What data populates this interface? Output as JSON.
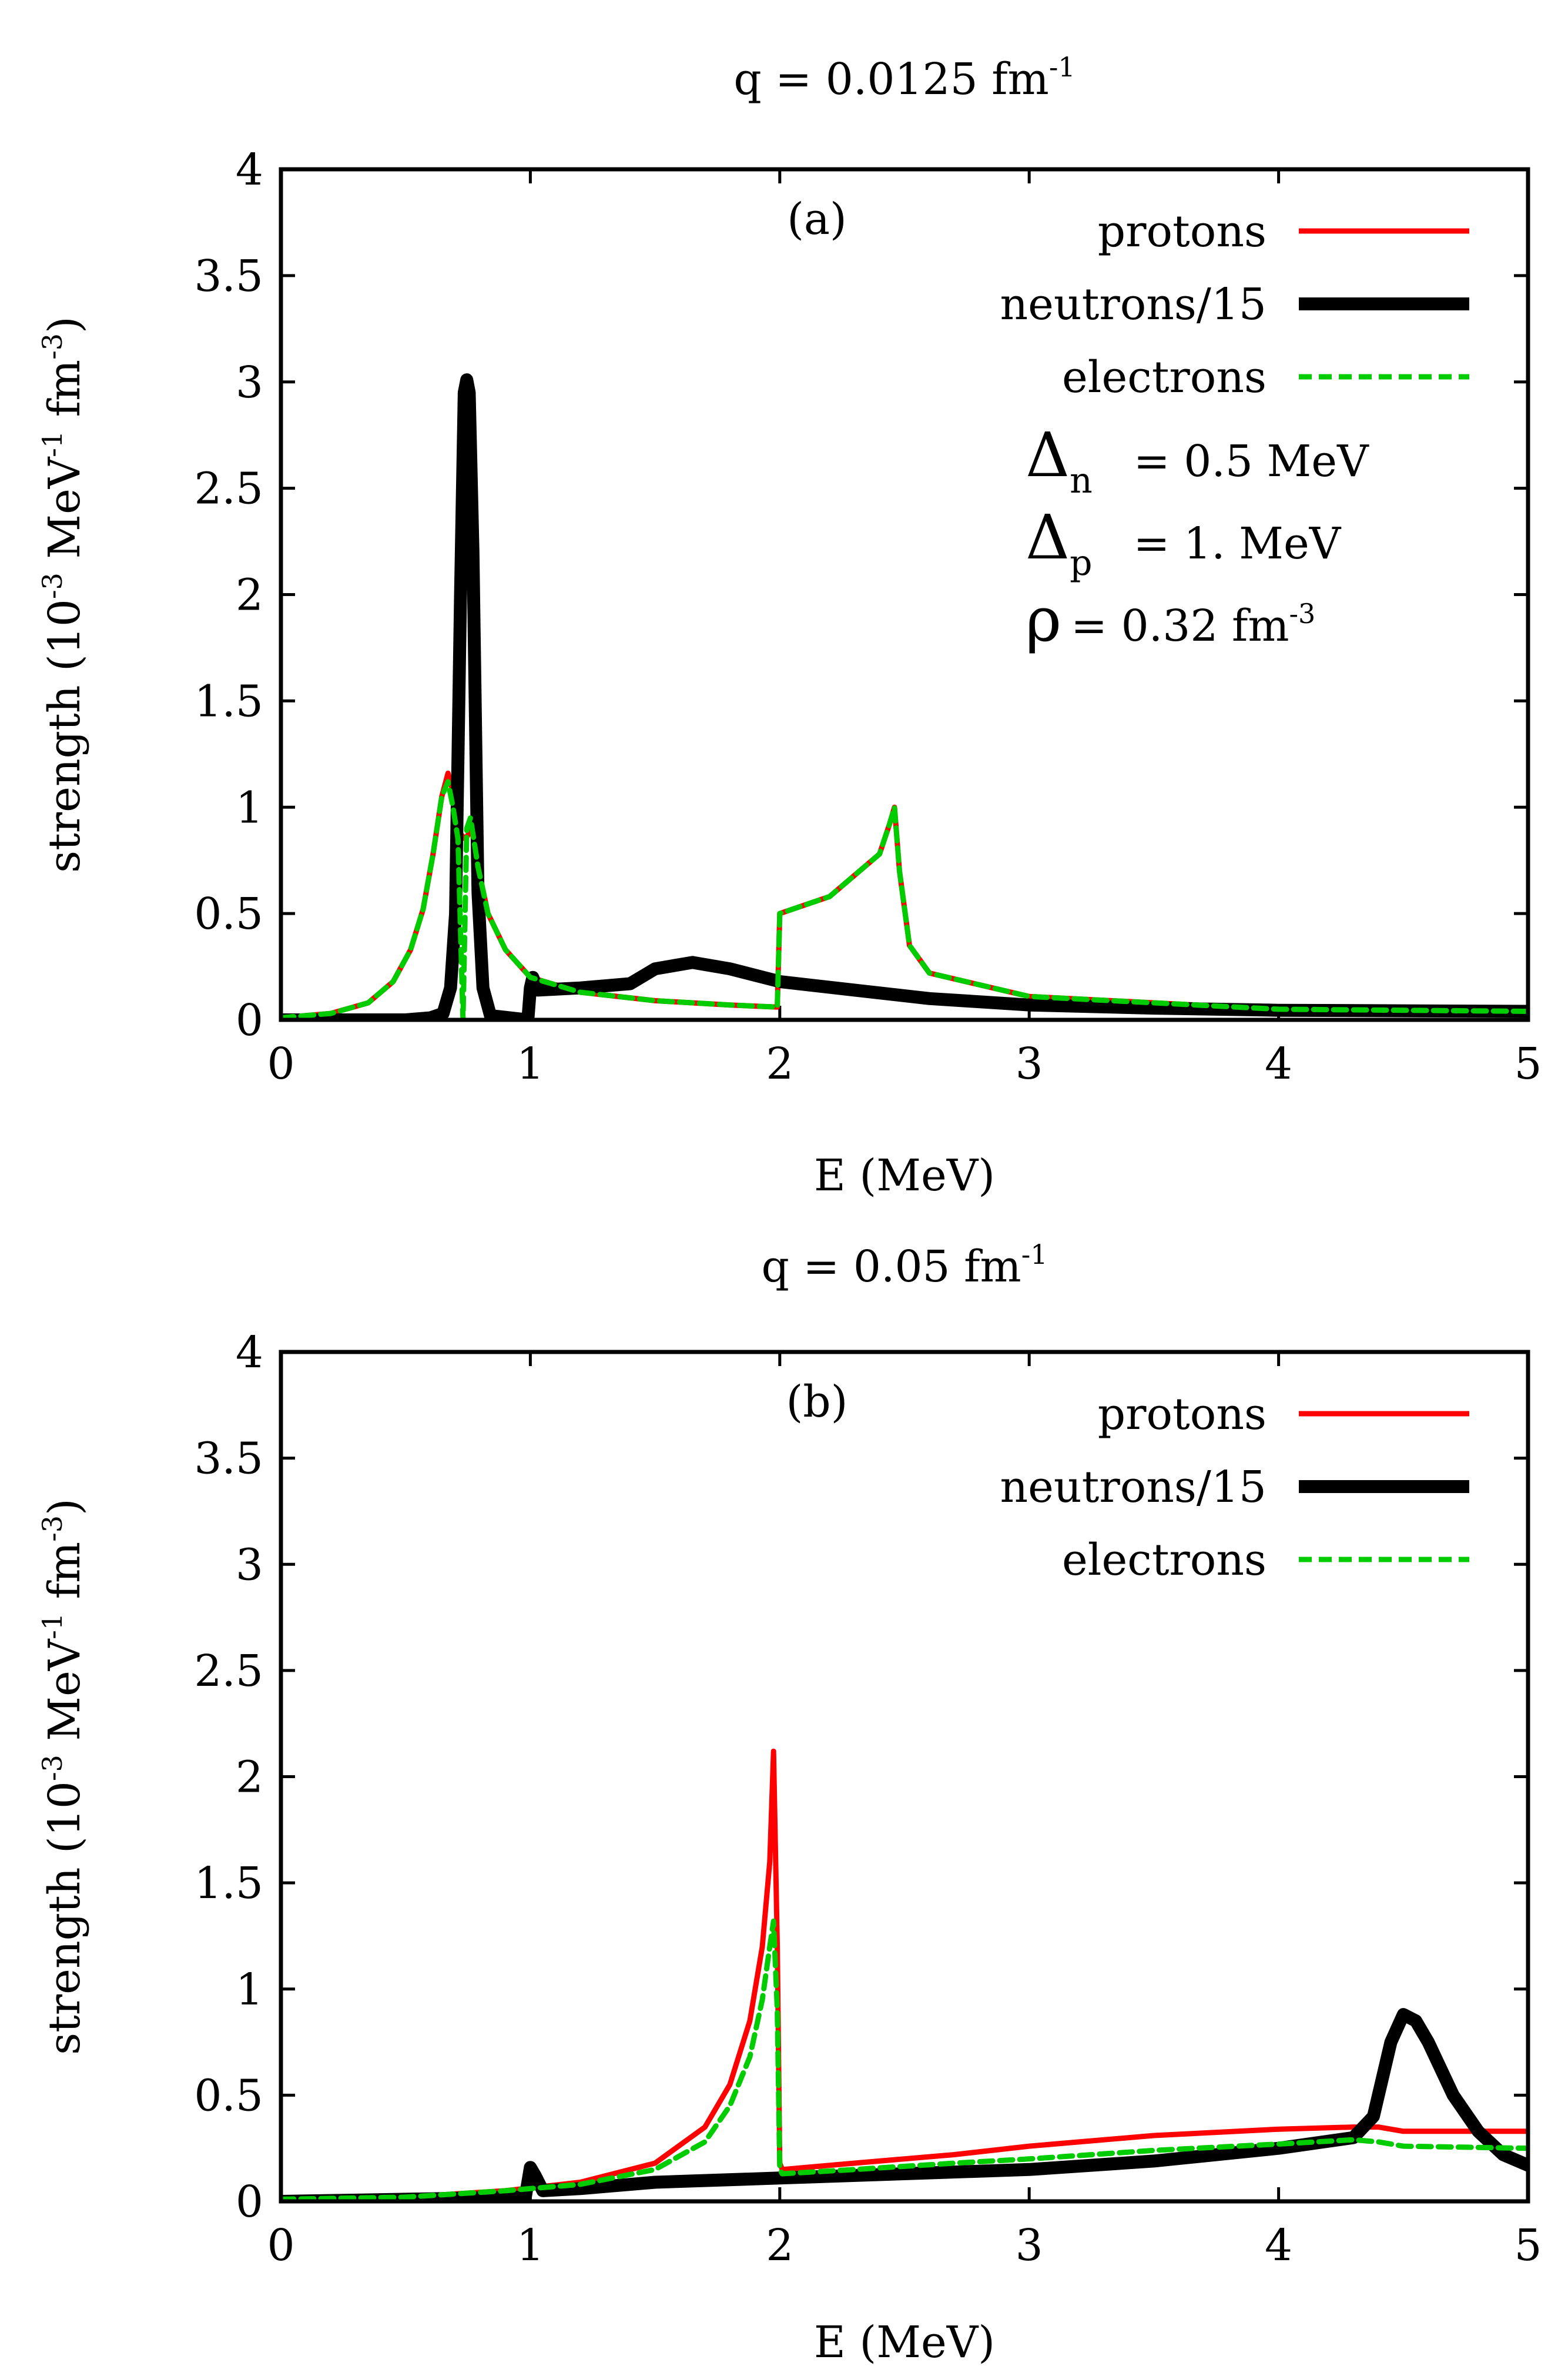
{
  "colors": {
    "protons": "#ff0000",
    "neutrons": "#000000",
    "electrons": "#00cc00",
    "frame": "#000000"
  },
  "chart_data": [
    {
      "type": "line",
      "panel_label": "(a)",
      "title": {
        "base": "q = 0.0125 fm",
        "sup": "-1"
      },
      "xlabel": "E (MeV)",
      "ylabel": {
        "p1": "strength (10",
        "s1": "-3",
        "p2": " MeV",
        "s2": "-1",
        "p3": " fm",
        "s3": "-3",
        "p4": ")"
      },
      "xlim": [
        0,
        5
      ],
      "ylim": [
        0,
        4
      ],
      "xticks": [
        "0",
        "1",
        "2",
        "3",
        "4",
        "5"
      ],
      "yticks": [
        "0",
        "0.5",
        "1",
        "1.5",
        "2",
        "2.5",
        "3",
        "3.5",
        "4"
      ],
      "legend_position": "top-right",
      "annotations": [
        {
          "sym": "Δ",
          "sub": "n",
          "text": "= 0.5 MeV"
        },
        {
          "sym": "Δ",
          "sub": "p",
          "text": "= 1. MeV"
        },
        {
          "sym": "ρ",
          "text": "= 0.32 fm",
          "sup": "-3"
        }
      ],
      "series": [
        {
          "key": "protons",
          "name": "protons",
          "points": [
            [
              0,
              0.01
            ],
            [
              0.2,
              0.03
            ],
            [
              0.35,
              0.08
            ],
            [
              0.45,
              0.18
            ],
            [
              0.52,
              0.33
            ],
            [
              0.57,
              0.52
            ],
            [
              0.61,
              0.78
            ],
            [
              0.645,
              1.05
            ],
            [
              0.67,
              1.16
            ],
            [
              0.695,
              1.05
            ],
            [
              0.715,
              0.88
            ],
            [
              0.74,
              0.85
            ],
            [
              0.765,
              0.9
            ],
            [
              0.79,
              0.72
            ],
            [
              0.83,
              0.5
            ],
            [
              0.9,
              0.33
            ],
            [
              1.0,
              0.2
            ],
            [
              1.2,
              0.13
            ],
            [
              1.5,
              0.09
            ],
            [
              1.8,
              0.07
            ],
            [
              1.99,
              0.06
            ],
            [
              2.0,
              0.5
            ],
            [
              2.2,
              0.58
            ],
            [
              2.4,
              0.78
            ],
            [
              2.44,
              0.92
            ],
            [
              2.46,
              1.0
            ],
            [
              2.48,
              0.7
            ],
            [
              2.52,
              0.35
            ],
            [
              2.6,
              0.22
            ],
            [
              3.0,
              0.11
            ],
            [
              4.0,
              0.05
            ],
            [
              5.0,
              0.04
            ]
          ]
        },
        {
          "key": "neutrons",
          "name": "neutrons/15",
          "points": [
            [
              0,
              0
            ],
            [
              0.5,
              0
            ],
            [
              0.6,
              0.01
            ],
            [
              0.65,
              0.03
            ],
            [
              0.68,
              0.15
            ],
            [
              0.7,
              0.5
            ],
            [
              0.72,
              2.0
            ],
            [
              0.735,
              2.95
            ],
            [
              0.745,
              3.01
            ],
            [
              0.755,
              2.95
            ],
            [
              0.77,
              2.2
            ],
            [
              0.79,
              0.6
            ],
            [
              0.81,
              0.15
            ],
            [
              0.84,
              0.02
            ],
            [
              0.99,
              0.0
            ],
            [
              1.0,
              0.15
            ],
            [
              1.01,
              0.2
            ],
            [
              1.03,
              0.14
            ],
            [
              1.2,
              0.15
            ],
            [
              1.4,
              0.17
            ],
            [
              1.5,
              0.24
            ],
            [
              1.65,
              0.27
            ],
            [
              1.8,
              0.24
            ],
            [
              2.0,
              0.18
            ],
            [
              2.3,
              0.14
            ],
            [
              2.6,
              0.1
            ],
            [
              3.0,
              0.07
            ],
            [
              3.5,
              0.055
            ],
            [
              4.0,
              0.045
            ],
            [
              5.0,
              0.04
            ]
          ]
        },
        {
          "key": "electrons",
          "name": "electrons",
          "points": [
            [
              0,
              0.01
            ],
            [
              0.2,
              0.03
            ],
            [
              0.35,
              0.08
            ],
            [
              0.45,
              0.18
            ],
            [
              0.52,
              0.33
            ],
            [
              0.57,
              0.52
            ],
            [
              0.61,
              0.78
            ],
            [
              0.645,
              1.05
            ],
            [
              0.67,
              1.12
            ],
            [
              0.69,
              1.0
            ],
            [
              0.71,
              0.85
            ],
            [
              0.73,
              0.0
            ],
            [
              0.745,
              0.9
            ],
            [
              0.76,
              0.95
            ],
            [
              0.79,
              0.72
            ],
            [
              0.83,
              0.5
            ],
            [
              0.9,
              0.33
            ],
            [
              1.0,
              0.2
            ],
            [
              1.2,
              0.13
            ],
            [
              1.5,
              0.09
            ],
            [
              1.8,
              0.07
            ],
            [
              1.99,
              0.06
            ],
            [
              2.0,
              0.5
            ],
            [
              2.2,
              0.58
            ],
            [
              2.4,
              0.78
            ],
            [
              2.44,
              0.92
            ],
            [
              2.46,
              1.0
            ],
            [
              2.48,
              0.7
            ],
            [
              2.52,
              0.35
            ],
            [
              2.6,
              0.22
            ],
            [
              3.0,
              0.11
            ],
            [
              4.0,
              0.05
            ],
            [
              5.0,
              0.04
            ]
          ]
        }
      ]
    },
    {
      "type": "line",
      "panel_label": "(b)",
      "title": {
        "base": "q = 0.05 fm",
        "sup": "-1"
      },
      "xlabel": "E (MeV)",
      "ylabel": {
        "p1": "strength (10",
        "s1": "-3",
        "p2": " MeV",
        "s2": "-1",
        "p3": " fm",
        "s3": "-3",
        "p4": ")"
      },
      "xlim": [
        0,
        5
      ],
      "ylim": [
        0,
        4
      ],
      "xticks": [
        "0",
        "1",
        "2",
        "3",
        "4",
        "5"
      ],
      "yticks": [
        "0",
        "0.5",
        "1",
        "1.5",
        "2",
        "2.5",
        "3",
        "3.5",
        "4"
      ],
      "legend_position": "top-right",
      "annotations": [],
      "series": [
        {
          "key": "protons",
          "name": "protons",
          "points": [
            [
              0,
              0.01
            ],
            [
              0.5,
              0.02
            ],
            [
              0.9,
              0.05
            ],
            [
              1.2,
              0.09
            ],
            [
              1.5,
              0.18
            ],
            [
              1.7,
              0.35
            ],
            [
              1.8,
              0.55
            ],
            [
              1.88,
              0.85
            ],
            [
              1.93,
              1.2
            ],
            [
              1.96,
              1.6
            ],
            [
              1.975,
              2.12
            ],
            [
              1.99,
              1.2
            ],
            [
              2.0,
              0.18
            ],
            [
              2.01,
              0.15
            ],
            [
              2.3,
              0.18
            ],
            [
              2.7,
              0.22
            ],
            [
              3.0,
              0.26
            ],
            [
              3.5,
              0.31
            ],
            [
              4.0,
              0.34
            ],
            [
              4.3,
              0.35
            ],
            [
              4.4,
              0.35
            ],
            [
              4.5,
              0.33
            ],
            [
              5.0,
              0.33
            ]
          ]
        },
        {
          "key": "neutrons",
          "name": "neutrons/15",
          "points": [
            [
              0,
              0.0
            ],
            [
              0.5,
              0.01
            ],
            [
              0.98,
              0.02
            ],
            [
              1.0,
              0.16
            ],
            [
              1.02,
              0.12
            ],
            [
              1.05,
              0.05
            ],
            [
              1.2,
              0.06
            ],
            [
              1.5,
              0.09
            ],
            [
              2.0,
              0.11
            ],
            [
              2.5,
              0.13
            ],
            [
              3.0,
              0.15
            ],
            [
              3.5,
              0.19
            ],
            [
              4.0,
              0.25
            ],
            [
              4.3,
              0.3
            ],
            [
              4.38,
              0.4
            ],
            [
              4.45,
              0.75
            ],
            [
              4.5,
              0.88
            ],
            [
              4.55,
              0.85
            ],
            [
              4.6,
              0.75
            ],
            [
              4.7,
              0.5
            ],
            [
              4.8,
              0.33
            ],
            [
              4.9,
              0.22
            ],
            [
              5.0,
              0.17
            ]
          ]
        },
        {
          "key": "electrons",
          "name": "electrons",
          "points": [
            [
              0,
              0.01
            ],
            [
              0.5,
              0.02
            ],
            [
              0.9,
              0.05
            ],
            [
              1.2,
              0.08
            ],
            [
              1.5,
              0.15
            ],
            [
              1.7,
              0.28
            ],
            [
              1.8,
              0.45
            ],
            [
              1.88,
              0.68
            ],
            [
              1.93,
              0.95
            ],
            [
              1.96,
              1.2
            ],
            [
              1.975,
              1.32
            ],
            [
              1.99,
              0.9
            ],
            [
              2.0,
              0.15
            ],
            [
              2.01,
              0.13
            ],
            [
              2.3,
              0.15
            ],
            [
              2.7,
              0.18
            ],
            [
              3.0,
              0.2
            ],
            [
              3.5,
              0.24
            ],
            [
              4.0,
              0.27
            ],
            [
              4.3,
              0.29
            ],
            [
              4.4,
              0.28
            ],
            [
              4.5,
              0.26
            ],
            [
              5.0,
              0.25
            ]
          ]
        }
      ]
    }
  ]
}
